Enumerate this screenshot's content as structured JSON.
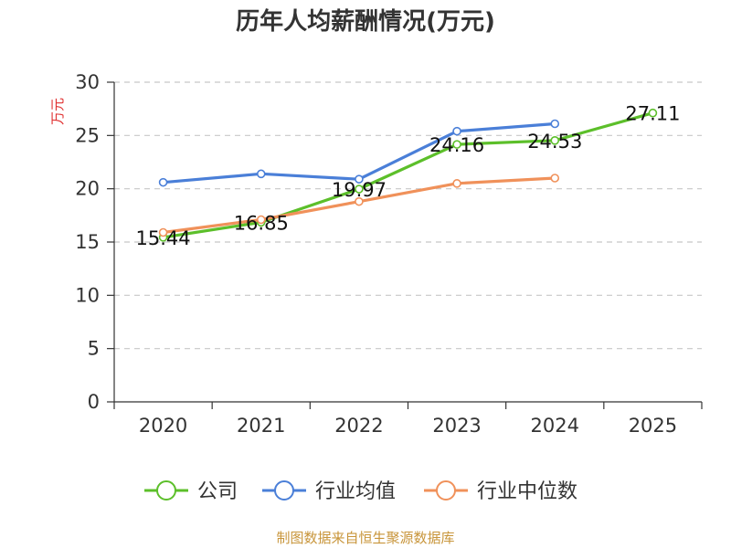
{
  "chart_data": {
    "type": "line",
    "title": "历年人均薪酬情况(万元)",
    "ylabel": "万元",
    "xlabel": "",
    "categories": [
      "2020",
      "2021",
      "2022",
      "2023",
      "2024",
      "2025"
    ],
    "ylim": [
      0,
      30
    ],
    "yticks": [
      0,
      5,
      10,
      15,
      20,
      25,
      30
    ],
    "grid": true,
    "legend_position": "bottom-center",
    "series": [
      {
        "name": "公司",
        "color": "#5cbf2a",
        "values": [
          15.44,
          16.85,
          19.97,
          24.16,
          24.53,
          27.11
        ],
        "data_labels": [
          "15.44",
          "16.85",
          "19.97",
          "24.16",
          "24.53",
          "27.11"
        ]
      },
      {
        "name": "行业均值",
        "color": "#4a7fd8",
        "values": [
          20.6,
          21.4,
          20.9,
          25.4,
          26.1,
          null
        ]
      },
      {
        "name": "行业中位数",
        "color": "#f0915a",
        "values": [
          15.9,
          17.1,
          18.8,
          20.5,
          21.0,
          null
        ]
      }
    ],
    "source": "制图数据来自恒生聚源数据库"
  }
}
